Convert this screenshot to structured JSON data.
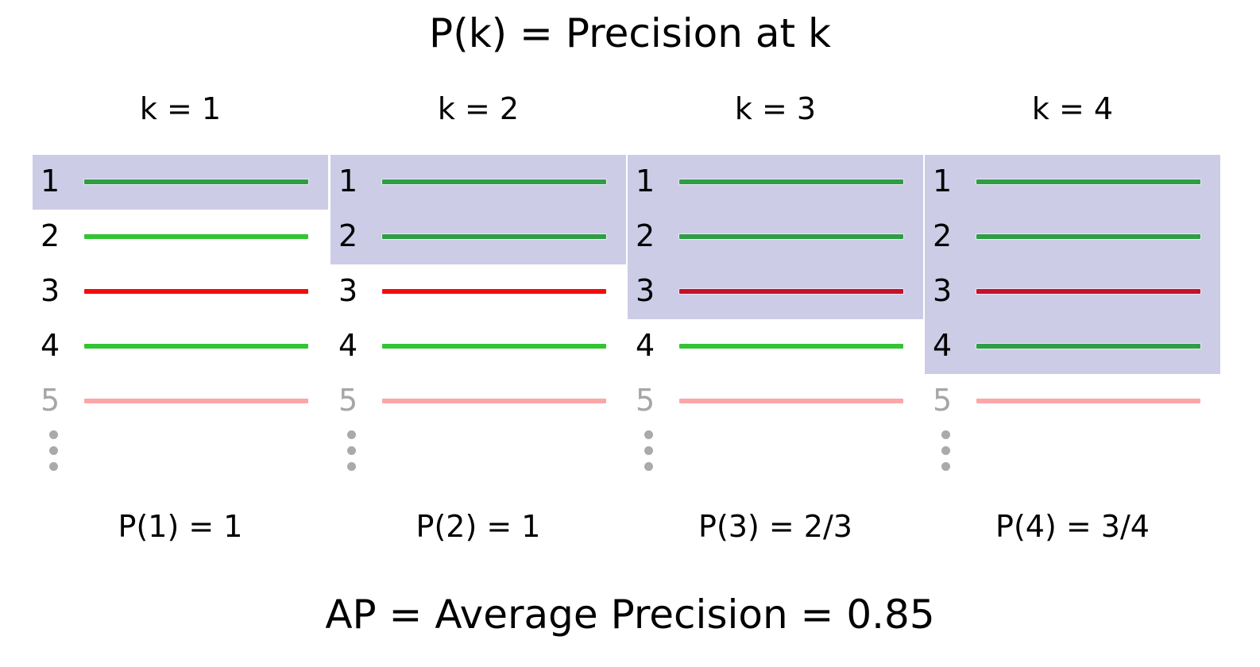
{
  "title": "P(k) = Precision at k",
  "footer": "AP = Average Precision = 0.85",
  "colors": {
    "relevant": "#33c433",
    "relevant_selected": "#2e9d46",
    "irrelevant": "#f20d0d",
    "irrelevant_selected": "#c8102a",
    "faded": "#faa7a7",
    "faded_text": "#a6a6a6",
    "highlight": "#cccce6"
  },
  "panels": [
    {
      "k_label": "k = 1",
      "k": 1,
      "precision_label": "P(1) = 1",
      "items": [
        {
          "rank": "1",
          "status": "relevant"
        },
        {
          "rank": "2",
          "status": "relevant"
        },
        {
          "rank": "3",
          "status": "irrelevant"
        },
        {
          "rank": "4",
          "status": "relevant"
        },
        {
          "rank": "5",
          "status": "faded"
        }
      ]
    },
    {
      "k_label": "k = 2",
      "k": 2,
      "precision_label": "P(2) = 1",
      "items": [
        {
          "rank": "1",
          "status": "relevant"
        },
        {
          "rank": "2",
          "status": "relevant"
        },
        {
          "rank": "3",
          "status": "irrelevant"
        },
        {
          "rank": "4",
          "status": "relevant"
        },
        {
          "rank": "5",
          "status": "faded"
        }
      ]
    },
    {
      "k_label": "k = 3",
      "k": 3,
      "precision_label": "P(3) = 2/3",
      "items": [
        {
          "rank": "1",
          "status": "relevant"
        },
        {
          "rank": "2",
          "status": "relevant"
        },
        {
          "rank": "3",
          "status": "irrelevant"
        },
        {
          "rank": "4",
          "status": "relevant"
        },
        {
          "rank": "5",
          "status": "faded"
        }
      ]
    },
    {
      "k_label": "k = 4",
      "k": 4,
      "precision_label": "P(4) = 3/4",
      "items": [
        {
          "rank": "1",
          "status": "relevant"
        },
        {
          "rank": "2",
          "status": "relevant"
        },
        {
          "rank": "3",
          "status": "irrelevant"
        },
        {
          "rank": "4",
          "status": "relevant"
        },
        {
          "rank": "5",
          "status": "faded"
        }
      ]
    }
  ]
}
